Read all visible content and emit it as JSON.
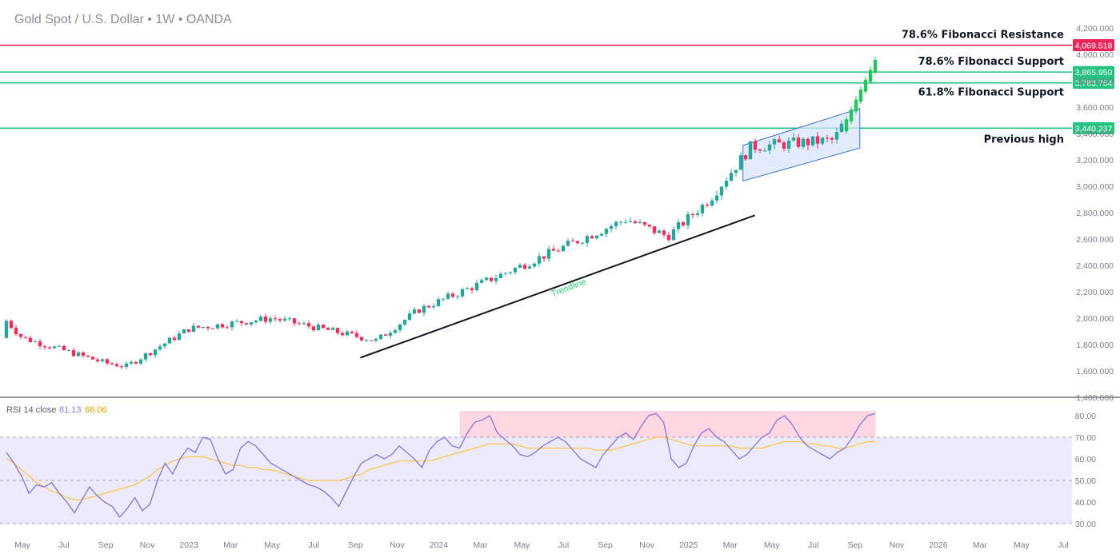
{
  "header": {
    "title": "Gold Spot / U.S. Dollar • 1W • OANDA"
  },
  "colors": {
    "up": "#26a69a",
    "up_bright": "#22c55e",
    "down": "#ef2f5a",
    "level_green": "#26c281",
    "level_red": "#e8255a",
    "trendline": "#131722",
    "channel_fill": "#d6e4fb",
    "channel_stroke": "#3d6fd6",
    "rsi_line": "#8c7bd6",
    "rsi_ma": "#f5c542",
    "rsi_band": "#eeeafd",
    "overbought_zone": "#ffd6e2"
  },
  "levels": [
    {
      "name": "78.6% Fibonacci Resistance",
      "price": 4069.518,
      "badge": "4,069.518",
      "color": "red"
    },
    {
      "name": "78.6% Fibonacci Support",
      "price": 3865.95,
      "badge": "3,865.950",
      "color": "green"
    },
    {
      "name": "61.8% Fibonacci Support",
      "price": 3783.754,
      "badge": "3,783.754",
      "color": "green"
    },
    {
      "name": "Previous high",
      "price": 3440.237,
      "badge": "3,440.237",
      "color": "green"
    }
  ],
  "annotations": {
    "trendline_label": "Trendline"
  },
  "rsi": {
    "label": "RSI 14 close",
    "value": "81.13",
    "ma_value": "68.06",
    "y_ticks": [
      "80.00",
      "70.00",
      "60.00",
      "50.00",
      "40.00",
      "30.00"
    ]
  },
  "chart_data": [
    {
      "type": "candlestick",
      "title": "Gold Spot / U.S. Dollar • 1W • OANDA",
      "x_labels": [
        "May",
        "Jul",
        "Sep",
        "Nov",
        "2023",
        "Mar",
        "May",
        "Jul",
        "Sep",
        "Nov",
        "2024",
        "Mar",
        "May",
        "Jul",
        "Sep",
        "Nov",
        "2025",
        "Mar",
        "May",
        "Jul",
        "Sep",
        "Nov",
        "2026",
        "Mar",
        "May",
        "Jul"
      ],
      "y_ticks": [
        "4,200.000",
        "4,000.000",
        "3,800.000",
        "3,600.000",
        "3,400.000",
        "3,200.000",
        "3,000.000",
        "2,800.000",
        "2,600.000",
        "2,400.000",
        "2,200.000",
        "2,000.000",
        "1,800.000",
        "1,600.000",
        "1,400.000"
      ],
      "ylim": [
        1400,
        4200
      ],
      "key_points": [
        {
          "date": "2022-05",
          "close": 1850
        },
        {
          "date": "2022-09",
          "close": 1660
        },
        {
          "date": "2022-10",
          "close": 1635
        },
        {
          "date": "2023-01",
          "close": 1920
        },
        {
          "date": "2023-05",
          "close": 2000
        },
        {
          "date": "2023-10",
          "close": 1830
        },
        {
          "date": "2023-12",
          "close": 2060
        },
        {
          "date": "2024-04",
          "close": 2330
        },
        {
          "date": "2024-10",
          "close": 2750
        },
        {
          "date": "2024-12",
          "close": 2620
        },
        {
          "date": "2025-02",
          "close": 2900
        },
        {
          "date": "2025-04",
          "close": 3300
        },
        {
          "date": "2025-08",
          "close": 3350
        },
        {
          "date": "2025-10",
          "close": 3950
        }
      ],
      "trendline": {
        "from": {
          "date": "2023-10",
          "price": 1700
        },
        "to": {
          "date": "2025-04",
          "price": 2780
        }
      },
      "channel": {
        "lower_from": 3040,
        "upper_from": 3310,
        "lower_to": 3290,
        "upper_to": 3590
      }
    },
    {
      "type": "line",
      "title": "RSI 14 close",
      "ylim": [
        30,
        80
      ],
      "overbought": 70,
      "oversold": 30,
      "midline": 50,
      "series": [
        {
          "name": "RSI 14 close",
          "last": 81.13,
          "values": [
            63,
            58,
            52,
            44,
            48,
            47,
            49,
            44,
            40,
            35,
            41,
            47,
            43,
            40,
            38,
            33,
            37,
            42,
            36,
            39,
            50,
            58,
            53,
            60,
            65,
            63,
            70,
            69,
            60,
            53,
            55,
            65,
            68,
            66,
            62,
            58,
            56,
            54,
            52,
            50,
            48,
            47,
            45,
            42,
            38,
            45,
            52,
            58,
            60,
            62,
            60,
            62,
            66,
            63,
            60,
            56,
            64,
            68,
            70,
            66,
            65,
            72,
            77,
            78,
            80,
            72,
            69,
            66,
            62,
            61,
            63,
            66,
            68,
            70,
            68,
            64,
            60,
            58,
            56,
            62,
            66,
            70,
            72,
            69,
            75,
            80,
            81,
            77,
            60,
            56,
            58,
            66,
            72,
            74,
            70,
            68,
            64,
            60,
            62,
            66,
            70,
            72,
            78,
            80,
            76,
            70,
            66,
            64,
            62,
            60,
            63,
            65,
            70,
            76,
            80,
            81
          ]
        },
        {
          "name": "RSI MA",
          "last": 68.06,
          "values": [
            60,
            58,
            55,
            52,
            49,
            47,
            45,
            44,
            42,
            41,
            41,
            42,
            43,
            44,
            45,
            46,
            47,
            48,
            50,
            52,
            55,
            57,
            59,
            60,
            61,
            61,
            61,
            60,
            59,
            58,
            57,
            57,
            56,
            56,
            55,
            55,
            54,
            53,
            52,
            51,
            50,
            50,
            50,
            50,
            50,
            51,
            52,
            53,
            55,
            56,
            57,
            58,
            59,
            59,
            59,
            59,
            59,
            60,
            61,
            62,
            63,
            64,
            65,
            66,
            67,
            67,
            67,
            67,
            66,
            65,
            65,
            65,
            65,
            65,
            65,
            65,
            65,
            65,
            64,
            64,
            64,
            65,
            66,
            67,
            68,
            69,
            70,
            70,
            69,
            68,
            67,
            66,
            66,
            66,
            66,
            66,
            66,
            65,
            65,
            65,
            65,
            66,
            67,
            68,
            68,
            68,
            67,
            67,
            66,
            66,
            65,
            65,
            66,
            67,
            68,
            68
          ]
        }
      ],
      "zone": {
        "from": "2024-02",
        "to": "2025-10",
        "range": [
          70,
          80
        ]
      }
    }
  ]
}
